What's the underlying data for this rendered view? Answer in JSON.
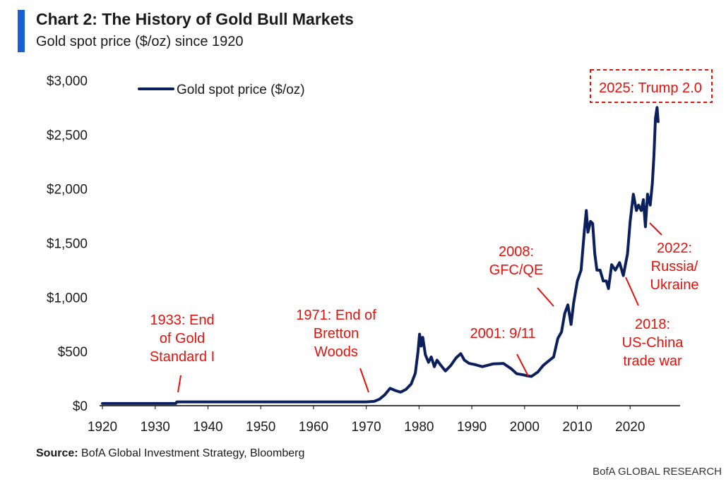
{
  "header": {
    "title": "Chart 2: The History of Gold Bull Markets",
    "subtitle": "Gold spot price ($/oz) since 1920"
  },
  "colors": {
    "accent": "#1a5fd6",
    "series": "#0b1f5c",
    "annotation": "#e3120b",
    "axis": "#000000"
  },
  "footer": {
    "source_label": "Source:",
    "source_text": "BofA Global Investment Strategy, Bloomberg",
    "brand": "BofA GLOBAL RESEARCH"
  },
  "chart_data": {
    "type": "line",
    "xlim": [
      1920,
      2030
    ],
    "ylim": [
      0,
      3000
    ],
    "x_ticks": [
      1920,
      1930,
      1940,
      1950,
      1960,
      1970,
      1980,
      1990,
      2000,
      2010,
      2020
    ],
    "x_tick_labels": [
      "1920",
      "1930",
      "1940",
      "1950",
      "1960",
      "1970",
      "1980",
      "1990",
      "2000",
      "2010",
      "2020"
    ],
    "y_ticks": [
      0,
      500,
      1000,
      1500,
      2000,
      2500,
      3000
    ],
    "y_tick_labels": [
      "$0",
      "$500",
      "$1,000",
      "$1,500",
      "$2,000",
      "$2,500",
      "$3,000"
    ],
    "grid": false,
    "legend": {
      "position": "top-left"
    },
    "series": [
      {
        "name": "Gold spot price ($/oz)",
        "x": [
          1920,
          1933.9,
          1934.1,
          1968,
          1970,
          1971.5,
          1972.5,
          1973.5,
          1974.5,
          1975.5,
          1976.5,
          1977.5,
          1978.5,
          1979.3,
          1979.8,
          1980.1,
          1980.4,
          1980.7,
          1981.2,
          1981.8,
          1982.3,
          1982.9,
          1983.4,
          1984,
          1985,
          1986,
          1987,
          1987.9,
          1988.6,
          1989.5,
          1990.5,
          1992,
          1994,
          1996,
          1997.5,
          1998.5,
          1999.7,
          2000.5,
          2001.3,
          2002.5,
          2003.5,
          2004.5,
          2005.5,
          2006.3,
          2007,
          2007.6,
          2008.2,
          2008.8,
          2009.3,
          2010,
          2010.7,
          2011.3,
          2011.7,
          2012,
          2012.5,
          2012.9,
          2013.3,
          2013.7,
          2014.3,
          2014.9,
          2015.5,
          2015.9,
          2016.5,
          2017.2,
          2018,
          2018.7,
          2019.5,
          2020,
          2020.6,
          2021.2,
          2021.6,
          2022.1,
          2022.5,
          2022.9,
          2023.3,
          2023.8,
          2024.2,
          2024.5,
          2024.8,
          2025.1,
          2025.3
        ],
        "values": [
          20,
          20,
          35,
          35,
          35,
          40,
          60,
          100,
          160,
          140,
          125,
          150,
          200,
          300,
          500,
          660,
          550,
          630,
          470,
          400,
          450,
          360,
          420,
          380,
          320,
          370,
          440,
          480,
          420,
          390,
          380,
          360,
          385,
          390,
          340,
          295,
          285,
          275,
          270,
          310,
          370,
          410,
          450,
          620,
          680,
          850,
          930,
          750,
          950,
          1150,
          1250,
          1600,
          1800,
          1600,
          1700,
          1680,
          1400,
          1250,
          1250,
          1150,
          1150,
          1080,
          1300,
          1250,
          1320,
          1200,
          1400,
          1700,
          1950,
          1800,
          1850,
          1800,
          1900,
          1650,
          1950,
          1850,
          2050,
          2300,
          2650,
          2750,
          2620
        ]
      }
    ],
    "annotations": [
      {
        "text": [
          "1933: End",
          "of Gold",
          "Standard I"
        ],
        "x": 1934.5,
        "y": 35
      },
      {
        "text": [
          "1971: End of",
          "Bretton",
          "Woods"
        ],
        "x": 1970.5,
        "y": 38
      },
      {
        "text": [
          "2001: 9/11"
        ],
        "x": 2001.5,
        "y": 278
      },
      {
        "text": [
          "2008:",
          "GFC/QE"
        ],
        "x": 2006,
        "y": 880
      },
      {
        "text": [
          "2018:",
          "US-China",
          "trade war"
        ],
        "x": 2018.3,
        "y": 1210
      },
      {
        "text": [
          "2022:",
          "Russia/",
          "Ukraine"
        ],
        "x": 2022.3,
        "y": 1640
      },
      {
        "text": [
          "2025: Trump 2.0"
        ],
        "x": 2025,
        "y": 2750
      }
    ]
  }
}
